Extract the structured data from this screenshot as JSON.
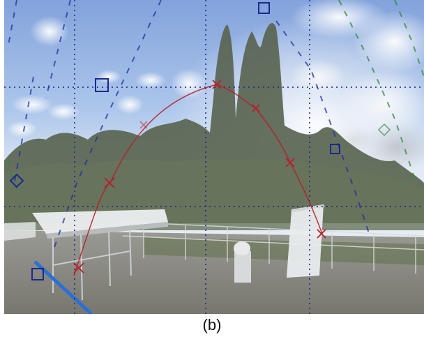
{
  "caption": "(b)",
  "scene": {
    "description_icon": "panoramic-sky-photo",
    "colors": {
      "sky_top": "#6f95d6",
      "sky_mid": "#a9c4ea",
      "sky_horizon": "#e9eef5",
      "tree_dark": "#2f3b2a",
      "tree_mid": "#4a5a3c",
      "roof": "#8d8d89",
      "grid_line": "#1c2a8a",
      "sun_path": "#b4202a",
      "green_trace": "#2f8a3a",
      "blue_pipe": "#2b6fd8"
    }
  }
}
